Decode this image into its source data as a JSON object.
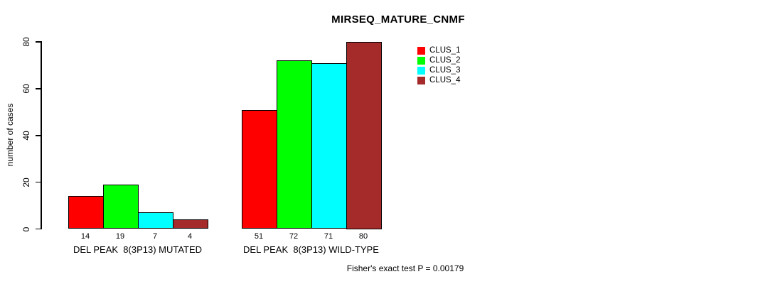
{
  "chart_data": {
    "type": "bar",
    "title": "MIRSEQ_MATURE_CNMF",
    "xlabel": "",
    "ylabel": "number of cases",
    "ylim": [
      0,
      80
    ],
    "yticks": [
      0,
      20,
      40,
      60,
      80
    ],
    "grid": false,
    "background": "#ffffff",
    "axis_color": "#000000",
    "legend_position": "right",
    "categories": [
      "DEL PEAK  8(3P13) MUTATED",
      "DEL PEAK  8(3P13) WILD-TYPE"
    ],
    "series": [
      {
        "name": "CLUS_1",
        "color": "#ff0000",
        "values": [
          14,
          51
        ]
      },
      {
        "name": "CLUS_2",
        "color": "#00ff00",
        "values": [
          19,
          72
        ]
      },
      {
        "name": "CLUS_3",
        "color": "#00ffff",
        "values": [
          7,
          71
        ]
      },
      {
        "name": "CLUS_4",
        "color": "#a52a2a",
        "values": [
          4,
          80
        ]
      }
    ],
    "value_labels_shown": true,
    "annotation": "Fisher's exact test P = 0.00179"
  }
}
